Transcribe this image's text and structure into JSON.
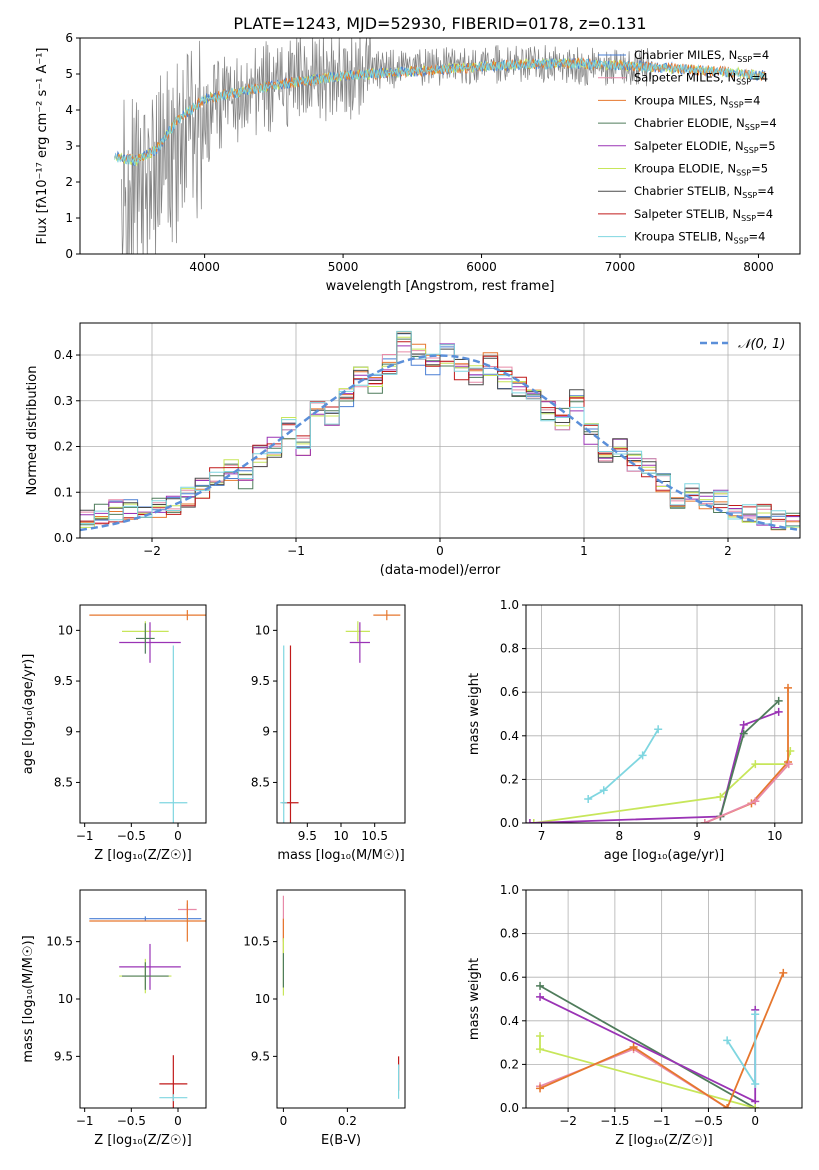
{
  "figure": {
    "title": "PLATE=1243, MJD=52930, FIBERID=0178, z=0.131"
  },
  "colors": {
    "chabrier_miles": "#4a7fd4",
    "salpeter_miles": "#e88aa8",
    "kroupa_miles": "#e6772e",
    "chabrier_elodie": "#4f7c5b",
    "salpeter_elodie": "#9a33b5",
    "kroupa_elodie": "#c7e65a",
    "chabrier_stelib": "#4a4a4a",
    "salpeter_stelib": "#c01a1a",
    "kroupa_stelib": "#7fd6e0",
    "data": "#808080",
    "gauss": "#5b8fd9"
  },
  "chart_data": [
    {
      "id": "spectrum",
      "type": "line",
      "title": "PLATE=1243, MJD=52930, FIBERID=0178, z=0.131",
      "xlabel": "wavelength [Angstrom, rest frame]",
      "ylabel": "Flux [fλ10⁻¹⁷ erg cm⁻² s⁻¹ A⁻¹]",
      "xlim": [
        3100,
        8300
      ],
      "ylim": [
        0,
        6
      ],
      "xticks": [
        4000,
        5000,
        6000,
        7000,
        8000
      ],
      "yticks": [
        0,
        1,
        2,
        3,
        4,
        5,
        6
      ],
      "legend_position": "top-right",
      "data_curve": {
        "x": [
          3500,
          3700,
          3900,
          4100,
          4300,
          4600,
          4900,
          5200,
          5600,
          6000,
          6400,
          6800,
          7200
        ],
        "y": [
          1.8,
          2.5,
          3.4,
          4.1,
          4.5,
          4.8,
          5.0,
          5.1,
          5.2,
          5.25,
          5.3,
          5.2,
          5.2
        ]
      },
      "model_curve": {
        "x": [
          3350,
          3500,
          3650,
          3800,
          4000,
          4300,
          4600,
          5000,
          5400,
          5800,
          6200,
          6600,
          7000,
          7400,
          7800,
          8050
        ],
        "y": [
          2.7,
          2.6,
          2.9,
          3.7,
          4.3,
          4.55,
          4.75,
          4.95,
          5.05,
          5.15,
          5.25,
          5.3,
          5.25,
          5.15,
          5.05,
          4.95
        ]
      },
      "series": [
        {
          "name": "Chabrier MILES, N_SSP=4",
          "color_key": "chabrier_miles"
        },
        {
          "name": "Salpeter MILES, N_SSP=4",
          "color_key": "salpeter_miles"
        },
        {
          "name": "Kroupa MILES, N_SSP=4",
          "color_key": "kroupa_miles"
        },
        {
          "name": "Chabrier ELODIE, N_SSP=4",
          "color_key": "chabrier_elodie"
        },
        {
          "name": "Salpeter ELODIE, N_SSP=5",
          "color_key": "salpeter_elodie"
        },
        {
          "name": "Kroupa ELODIE, N_SSP=5",
          "color_key": "kroupa_elodie"
        },
        {
          "name": "Chabrier STELIB, N_SSP=4",
          "color_key": "chabrier_stelib"
        },
        {
          "name": "Salpeter STELIB, N_SSP=4",
          "color_key": "salpeter_stelib"
        },
        {
          "name": "Kroupa STELIB, N_SSP=4",
          "color_key": "kroupa_stelib"
        }
      ],
      "legend_labels": [
        {
          "main": "Chabrier MILES, N",
          "sub": "SSP",
          "tail": "=4"
        },
        {
          "main": "Salpeter MILES, N",
          "sub": "SSP",
          "tail": "=4"
        },
        {
          "main": "Kroupa MILES, N",
          "sub": "SSP",
          "tail": "=4"
        },
        {
          "main": "Chabrier ELODIE, N",
          "sub": "SSP",
          "tail": "=4"
        },
        {
          "main": "Salpeter ELODIE, N",
          "sub": "SSP",
          "tail": "=5"
        },
        {
          "main": "Kroupa ELODIE, N",
          "sub": "SSP",
          "tail": "=5"
        },
        {
          "main": "Chabrier STELIB, N",
          "sub": "SSP",
          "tail": "=4"
        },
        {
          "main": "Salpeter STELIB, N",
          "sub": "SSP",
          "tail": "=4"
        },
        {
          "main": "Kroupa STELIB, N",
          "sub": "SSP",
          "tail": "=4"
        }
      ]
    },
    {
      "id": "residuals",
      "type": "line",
      "xlabel": "(data-model)/error",
      "ylabel": "Normed distribution",
      "xlim": [
        -2.5,
        2.5
      ],
      "ylim": [
        0,
        0.47
      ],
      "xticks": [
        -2,
        -1,
        0,
        1,
        2
      ],
      "yticks": [
        0.0,
        0.1,
        0.2,
        0.3,
        0.4
      ],
      "grid": true,
      "legend_position": "top-right",
      "legend": "𝒩(0, 1)",
      "bin_edges": [
        -2.5,
        -2.4,
        -2.3,
        -2.2,
        -2.1,
        -2.0,
        -1.9,
        -1.8,
        -1.7,
        -1.6,
        -1.5,
        -1.4,
        -1.3,
        -1.2,
        -1.1,
        -1.0,
        -0.9,
        -0.8,
        -0.7,
        -0.6,
        -0.5,
        -0.4,
        -0.3,
        -0.2,
        -0.1,
        0.0,
        0.1,
        0.2,
        0.3,
        0.4,
        0.5,
        0.6,
        0.7,
        0.8,
        0.9,
        1.0,
        1.1,
        1.2,
        1.3,
        1.4,
        1.5,
        1.6,
        1.7,
        1.8,
        1.9,
        2.0,
        2.1,
        2.2,
        2.3,
        2.4,
        2.5
      ],
      "histogram": [
        0.04,
        0.05,
        0.06,
        0.06,
        0.07,
        0.07,
        0.07,
        0.09,
        0.11,
        0.14,
        0.15,
        0.13,
        0.18,
        0.2,
        0.24,
        0.2,
        0.29,
        0.27,
        0.31,
        0.35,
        0.34,
        0.38,
        0.43,
        0.4,
        0.38,
        0.4,
        0.37,
        0.36,
        0.38,
        0.35,
        0.33,
        0.3,
        0.28,
        0.26,
        0.3,
        0.23,
        0.19,
        0.2,
        0.17,
        0.15,
        0.12,
        0.09,
        0.1,
        0.08,
        0.08,
        0.05,
        0.05,
        0.05,
        0.04,
        0.04
      ],
      "gaussian": {
        "mean": 0,
        "sigma": 1
      }
    },
    {
      "id": "age-vs-Z",
      "type": "scatter",
      "xlabel": "Z [log₁₀(Z/Z☉)]",
      "ylabel": "age  [log₁₀(age/yr)]",
      "xlim": [
        -1.05,
        0.3
      ],
      "ylim": [
        8.1,
        10.25
      ],
      "xticks": [
        -1.0,
        -0.5,
        0.0
      ],
      "yticks": [
        8.5,
        9.0,
        9.5,
        10.0
      ],
      "points": [
        {
          "x": 0.1,
          "y": 10.15,
          "xerr": 1.05,
          "yerr": 0.05,
          "color_key": "kroupa_miles"
        },
        {
          "x": -0.35,
          "y": 9.99,
          "xerr": 0.25,
          "yerr": 0.1,
          "color_key": "kroupa_elodie"
        },
        {
          "x": -0.3,
          "y": 9.88,
          "xerr": 0.33,
          "yerr": 0.2,
          "color_key": "salpeter_elodie"
        },
        {
          "x": -0.35,
          "y": 9.92,
          "xerr": 0.1,
          "yerr": 0.15,
          "color_key": "chabrier_elodie"
        },
        {
          "x": -0.05,
          "y": 8.3,
          "xerr": 0.15,
          "yerr": 1.55,
          "color_key": "kroupa_stelib"
        }
      ]
    },
    {
      "id": "age-vs-mass",
      "type": "scatter",
      "xlabel": "mass [log₁₀(M/M☉)]",
      "ylabel": "",
      "xlim": [
        9.05,
        10.95
      ],
      "ylim": [
        8.1,
        10.25
      ],
      "xticks": [
        9.5,
        10.0,
        10.5
      ],
      "yticks": [
        8.5,
        9.0,
        9.5,
        10.0
      ],
      "points": [
        {
          "x": 10.68,
          "y": 10.15,
          "xerr": 0.2,
          "yerr": 0.05,
          "color_key": "kroupa_miles"
        },
        {
          "x": 10.25,
          "y": 9.99,
          "xerr": 0.18,
          "yerr": 0.1,
          "color_key": "kroupa_elodie"
        },
        {
          "x": 10.28,
          "y": 9.88,
          "xerr": 0.15,
          "yerr": 0.2,
          "color_key": "salpeter_elodie"
        },
        {
          "x": 9.25,
          "y": 8.3,
          "xerr": 0.12,
          "yerr": 1.55,
          "color_key": "salpeter_stelib"
        },
        {
          "x": 9.15,
          "y": 8.3,
          "xerr": 0.05,
          "yerr": 1.55,
          "color_key": "kroupa_stelib"
        }
      ]
    },
    {
      "id": "mass-weight-vs-age",
      "type": "line",
      "xlabel": "age  [log₁₀(age/yr)]",
      "ylabel": "mass weight",
      "xlim": [
        6.8,
        10.35
      ],
      "ylim": [
        0,
        1
      ],
      "xticks": [
        7,
        8,
        9,
        10
      ],
      "yticks": [
        0.0,
        0.2,
        0.4,
        0.6,
        0.8,
        1.0
      ],
      "grid": true,
      "series": [
        {
          "color_key": "kroupa_stelib",
          "x": [
            7.6,
            7.8,
            8.3,
            8.5
          ],
          "y": [
            0.11,
            0.15,
            0.31,
            0.43
          ]
        },
        {
          "color_key": "kroupa_elodie",
          "x": [
            6.9,
            9.3,
            9.75,
            10.15,
            10.2
          ],
          "y": [
            0.0,
            0.12,
            0.27,
            0.27,
            0.33
          ]
        },
        {
          "color_key": "salpeter_elodie",
          "x": [
            6.85,
            9.3,
            9.6,
            10.05
          ],
          "y": [
            0.0,
            0.03,
            0.45,
            0.51
          ]
        },
        {
          "color_key": "chabrier_elodie",
          "x": [
            9.3,
            9.6,
            10.05
          ],
          "y": [
            0.03,
            0.41,
            0.56
          ]
        },
        {
          "color_key": "kroupa_miles",
          "x": [
            9.1,
            9.7,
            10.17,
            10.17
          ],
          "y": [
            0.0,
            0.09,
            0.28,
            0.62
          ]
        },
        {
          "color_key": "salpeter_miles",
          "x": [
            9.1,
            9.75,
            10.18
          ],
          "y": [
            0.0,
            0.1,
            0.27
          ]
        }
      ]
    },
    {
      "id": "mass-vs-Z",
      "type": "scatter",
      "xlabel": "Z [log₁₀(Z/Z☉)]",
      "ylabel": "mass [log₁₀(M/M☉)]",
      "xlim": [
        -1.05,
        0.3
      ],
      "ylim": [
        9.05,
        10.95
      ],
      "xticks": [
        -1.0,
        -0.5,
        0.0
      ],
      "yticks": [
        9.5,
        10.0,
        10.5
      ],
      "points": [
        {
          "x": 0.1,
          "y": 10.78,
          "xerr": 0.1,
          "yerr": 0.05,
          "color_key": "salpeter_miles"
        },
        {
          "x": -0.35,
          "y": 10.7,
          "xerr": 0.6,
          "yerr": 0.02,
          "color_key": "chabrier_miles"
        },
        {
          "x": 0.1,
          "y": 10.68,
          "xerr": 1.05,
          "yerr": 0.18,
          "color_key": "kroupa_miles"
        },
        {
          "x": -0.3,
          "y": 10.28,
          "xerr": 0.33,
          "yerr": 0.2,
          "color_key": "salpeter_elodie"
        },
        {
          "x": -0.35,
          "y": 10.2,
          "xerr": 0.28,
          "yerr": 0.15,
          "color_key": "kroupa_elodie"
        },
        {
          "x": -0.35,
          "y": 10.2,
          "xerr": 0.25,
          "yerr": 0.12,
          "color_key": "chabrier_elodie"
        },
        {
          "x": -0.05,
          "y": 9.26,
          "xerr": 0.15,
          "yerr": 0.25,
          "color_key": "salpeter_stelib"
        },
        {
          "x": -0.05,
          "y": 9.14,
          "xerr": 0.15,
          "yerr": 0.03,
          "color_key": "kroupa_stelib"
        }
      ]
    },
    {
      "id": "mass-vs-ebv",
      "type": "scatter",
      "xlabel": "E(B-V)",
      "ylabel": "",
      "xlim": [
        -0.02,
        0.38
      ],
      "ylim": [
        9.05,
        10.95
      ],
      "xticks": [
        0.0,
        0.2
      ],
      "yticks": [
        9.5,
        10.0,
        10.5
      ],
      "points": [
        {
          "x": 0.0,
          "y": 10.7,
          "yerr": 0.2,
          "color_key": "salpeter_miles"
        },
        {
          "x": 0.0,
          "y": 10.55,
          "yerr": 0.15,
          "color_key": "kroupa_miles"
        },
        {
          "x": 0.0,
          "y": 10.28,
          "yerr": 0.25,
          "color_key": "kroupa_elodie"
        },
        {
          "x": 0.0,
          "y": 10.25,
          "yerr": 0.15,
          "color_key": "chabrier_elodie"
        },
        {
          "x": 0.36,
          "y": 9.35,
          "yerr": 0.15,
          "color_key": "salpeter_stelib"
        },
        {
          "x": 0.36,
          "y": 9.28,
          "yerr": 0.15,
          "color_key": "kroupa_stelib"
        }
      ]
    },
    {
      "id": "mass-weight-vs-Z",
      "type": "line",
      "xlabel": "Z [log₁₀(Z/Z☉)]",
      "ylabel": "mass weight",
      "xlim": [
        -2.45,
        0.5
      ],
      "ylim": [
        0,
        1
      ],
      "xticks": [
        -2.0,
        -1.5,
        -1.0,
        -0.5,
        0.0
      ],
      "yticks": [
        0.0,
        0.2,
        0.4,
        0.6,
        0.8,
        1.0
      ],
      "grid": true,
      "series": [
        {
          "color_key": "chabrier_elodie",
          "x": [
            -2.3,
            0.0
          ],
          "y": [
            0.56,
            0.0
          ]
        },
        {
          "color_key": "salpeter_elodie",
          "x": [
            -2.3,
            0.0,
            0.0
          ],
          "y": [
            0.51,
            0.03,
            0.45
          ]
        },
        {
          "color_key": "kroupa_elodie",
          "x": [
            -2.3,
            -2.3,
            0.0
          ],
          "y": [
            0.33,
            0.27,
            0.0
          ]
        },
        {
          "color_key": "salpeter_miles",
          "x": [
            -2.3,
            -1.3,
            -0.3
          ],
          "y": [
            0.1,
            0.27,
            0.0
          ]
        },
        {
          "color_key": "kroupa_miles",
          "x": [
            -2.3,
            -1.3,
            -0.3,
            0.3
          ],
          "y": [
            0.09,
            0.28,
            0.0,
            0.62
          ]
        },
        {
          "color_key": "kroupa_stelib",
          "x": [
            -0.3,
            0.0,
            0.0
          ],
          "y": [
            0.31,
            0.11,
            0.43
          ]
        }
      ]
    }
  ]
}
